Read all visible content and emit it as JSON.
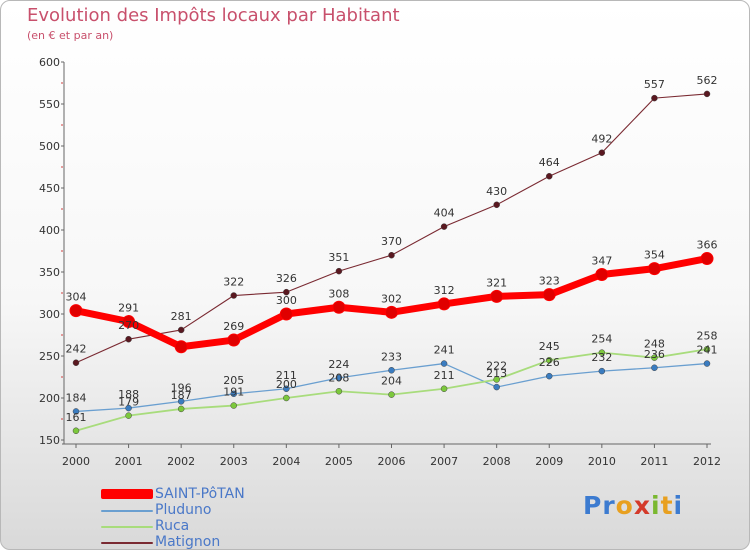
{
  "title": "Evolution des Impôts locaux par Habitant",
  "subtitle": "(en € et par an)",
  "logo": {
    "letters": [
      {
        "ch": "P",
        "color": "#3c7bd0"
      },
      {
        "ch": "r",
        "color": "#3c7bd0"
      },
      {
        "ch": "o",
        "color": "#e8a020"
      },
      {
        "ch": "x",
        "color": "#d43a2a"
      },
      {
        "ch": "i",
        "color": "#7ab830"
      },
      {
        "ch": "t",
        "color": "#e8a020"
      },
      {
        "ch": "i",
        "color": "#3c7bd0"
      }
    ]
  },
  "chart_data": {
    "type": "line",
    "x": [
      "2000",
      "2001",
      "2002",
      "2003",
      "2004",
      "2005",
      "2006",
      "2007",
      "2008",
      "2009",
      "2010",
      "2011",
      "2012"
    ],
    "ylim": [
      150,
      600
    ],
    "yticks": [
      150,
      200,
      250,
      300,
      350,
      400,
      450,
      500,
      550,
      600
    ],
    "grid": false,
    "legend_position": "bottom-left",
    "series": [
      {
        "name": "SAINT-PôTAN",
        "color": "#ff0000",
        "width": 7,
        "marker": "#e00000",
        "values": [
          304,
          291,
          261,
          269,
          300,
          308,
          302,
          312,
          321,
          323,
          347,
          354,
          366
        ],
        "labels": [
          "304",
          "291",
          "",
          "269",
          "300",
          "308",
          "302",
          "312",
          "321",
          "323",
          "347",
          "354",
          "366"
        ]
      },
      {
        "name": "Pluduno",
        "color": "#6a9fd0",
        "width": 1.3,
        "marker": "#3a7cc0",
        "values": [
          184,
          188,
          196,
          205,
          211,
          224,
          233,
          241,
          213,
          226,
          232,
          236,
          241
        ],
        "labels": [
          "184",
          "188",
          "196",
          "205",
          "211",
          "224",
          "233",
          "241",
          "213",
          "226",
          "232",
          "236",
          "241"
        ]
      },
      {
        "name": "Ruca",
        "color": "#a8dc7c",
        "width": 1.8,
        "marker": "#7cc83c",
        "values": [
          161,
          179,
          187,
          191,
          200,
          208,
          204,
          211,
          222,
          245,
          254,
          248,
          258
        ],
        "labels": [
          "161",
          "179",
          "187",
          "191",
          "200",
          "208",
          "204",
          "211",
          "222",
          "245",
          "254",
          "248",
          "258"
        ]
      },
      {
        "name": "Matignon",
        "color": "#7a2a32",
        "width": 1.1,
        "marker": "#5a1820",
        "values": [
          242,
          270,
          281,
          322,
          326,
          351,
          370,
          404,
          430,
          464,
          492,
          557,
          562
        ],
        "labels": [
          "242",
          "270",
          "281",
          "322",
          "326",
          "351",
          "370",
          "404",
          "430",
          "464",
          "492",
          "557",
          "562"
        ]
      }
    ]
  }
}
